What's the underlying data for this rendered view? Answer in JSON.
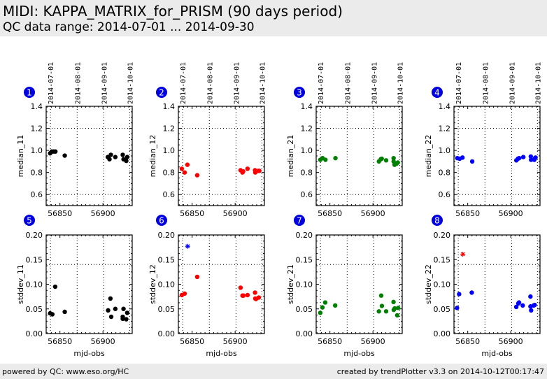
{
  "header": {
    "title": "MIDI: KAPPA_MATRIX_for_PRISM (90 days period)",
    "subtitle": "QC data range: 2014-07-01 ... 2014-09-30"
  },
  "footer": {
    "left": "powered by QC: www.eso.org/HC",
    "right": "created by trendPlotter v3.3 on 2014-10-12T00:17:47"
  },
  "colors": {
    "black": "#000000",
    "red": "#ff0000",
    "green": "#008000",
    "blue": "#0000ff",
    "badge": "#0000e0"
  },
  "chart_data": [
    {
      "type": "scatter",
      "panel": 1,
      "ylabel": "median_11",
      "xlabel": "",
      "xlim": [
        56834,
        56934
      ],
      "ylim": [
        0.5,
        1.4
      ],
      "yticks": [
        "0.6",
        "0.8",
        "1.0",
        "1.2",
        "1.4"
      ],
      "ytick_values": [
        0.6,
        0.8,
        1.0,
        1.2,
        1.4
      ],
      "xticks": [
        "56850",
        "56900"
      ],
      "xtick_values": [
        56850,
        56900
      ],
      "date_ticks": [
        "2014-07-01",
        "2014-08-01",
        "2014-09-01",
        "2014-10-01"
      ],
      "date_tick_mjd": [
        56839,
        56870,
        56901,
        56931
      ],
      "threshold_lines": [
        0.6,
        1.2
      ],
      "color": "black",
      "points": [
        [
          56838.6,
          0.974
        ],
        [
          56840.5,
          0.99
        ],
        [
          56842.6,
          0.99
        ],
        [
          56844.7,
          0.99
        ],
        [
          56855.6,
          0.953
        ],
        [
          56905.7,
          0.94
        ],
        [
          56907.6,
          0.92
        ],
        [
          56909.2,
          0.96
        ],
        [
          56914.4,
          0.94
        ],
        [
          56923.0,
          0.96
        ],
        [
          56923.9,
          0.92
        ],
        [
          56927.1,
          0.905
        ],
        [
          56928.2,
          0.94
        ]
      ],
      "outliers": []
    },
    {
      "type": "scatter",
      "panel": 2,
      "ylabel": "median_12",
      "xlabel": "",
      "xlim": [
        56834,
        56934
      ],
      "ylim": [
        0.5,
        1.4
      ],
      "yticks": [
        "0.6",
        "0.8",
        "1.0",
        "1.2",
        "1.4"
      ],
      "ytick_values": [
        0.6,
        0.8,
        1.0,
        1.2,
        1.4
      ],
      "xticks": [
        "56850",
        "56900"
      ],
      "xtick_values": [
        56850,
        56900
      ],
      "date_ticks": [
        "2014-07-01",
        "2014-08-01",
        "2014-09-01",
        "2014-10-01"
      ],
      "date_tick_mjd": [
        56839,
        56870,
        56901,
        56931
      ],
      "threshold_lines": [
        0.6,
        1.2
      ],
      "color": "red",
      "points": [
        [
          56838.0,
          0.834
        ],
        [
          56841.3,
          0.8
        ],
        [
          56844.5,
          0.87
        ],
        [
          56855.9,
          0.775
        ],
        [
          56906.3,
          0.82
        ],
        [
          56908.5,
          0.8
        ],
        [
          56909.3,
          0.81
        ],
        [
          56914.4,
          0.834
        ],
        [
          56923.1,
          0.82
        ],
        [
          56923.4,
          0.8
        ],
        [
          56926.9,
          0.815
        ],
        [
          56928.0,
          0.815
        ]
      ],
      "outliers": []
    },
    {
      "type": "scatter",
      "panel": 3,
      "ylabel": "median_21",
      "xlabel": "",
      "xlim": [
        56834,
        56934
      ],
      "ylim": [
        0.5,
        1.4
      ],
      "yticks": [
        "0.6",
        "0.8",
        "1.0",
        "1.2",
        "1.4"
      ],
      "ytick_values": [
        0.6,
        0.8,
        1.0,
        1.2,
        1.4
      ],
      "xticks": [
        "56850",
        "56900"
      ],
      "xtick_values": [
        56850,
        56900
      ],
      "date_ticks": [
        "2014-07-01",
        "2014-08-01",
        "2014-09-01",
        "2014-10-01"
      ],
      "date_tick_mjd": [
        56839,
        56870,
        56901,
        56931
      ],
      "threshold_lines": [
        0.6,
        1.2
      ],
      "color": "green",
      "points": [
        [
          56838.8,
          0.915
        ],
        [
          56841.5,
          0.93
        ],
        [
          56844.8,
          0.915
        ],
        [
          56856.4,
          0.93
        ],
        [
          56906.9,
          0.9
        ],
        [
          56909.1,
          0.92
        ],
        [
          56910.2,
          0.925
        ],
        [
          56915.3,
          0.91
        ],
        [
          56924.0,
          0.93
        ],
        [
          56924.0,
          0.9
        ],
        [
          56925.1,
          0.87
        ],
        [
          56927.5,
          0.88
        ],
        [
          56928.9,
          0.89
        ]
      ],
      "outliers": []
    },
    {
      "type": "scatter",
      "panel": 4,
      "ylabel": "median_22",
      "xlabel": "",
      "xlim": [
        56834,
        56934
      ],
      "ylim": [
        0.5,
        1.4
      ],
      "yticks": [
        "0.6",
        "0.8",
        "1.0",
        "1.2",
        "1.4"
      ],
      "ytick_values": [
        0.6,
        0.8,
        1.0,
        1.2,
        1.4
      ],
      "xticks": [
        "56850",
        "56900"
      ],
      "xtick_values": [
        56850,
        56900
      ],
      "date_ticks": [
        "2014-07-01",
        "2014-08-01",
        "2014-09-01",
        "2014-10-01"
      ],
      "date_tick_mjd": [
        56839,
        56870,
        56901,
        56931
      ],
      "threshold_lines": [
        0.6,
        1.2
      ],
      "color": "blue",
      "points": [
        [
          56837.9,
          0.93
        ],
        [
          56840.6,
          0.925
        ],
        [
          56843.9,
          0.935
        ],
        [
          56855.2,
          0.9
        ],
        [
          56906.5,
          0.91
        ],
        [
          56908.4,
          0.925
        ],
        [
          56909.8,
          0.93
        ],
        [
          56914.6,
          0.94
        ],
        [
          56923.3,
          0.945
        ],
        [
          56923.6,
          0.915
        ],
        [
          56927.4,
          0.915
        ],
        [
          56928.2,
          0.93
        ],
        [
          56928.8,
          0.935
        ]
      ],
      "outliers": []
    },
    {
      "type": "scatter",
      "panel": 5,
      "ylabel": "stddev_11",
      "xlabel": "mjd-obs",
      "xlim": [
        56834,
        56934
      ],
      "ylim": [
        0.0,
        0.2
      ],
      "yticks": [
        "0.00",
        "0.05",
        "0.10",
        "0.15",
        "0.20"
      ],
      "ytick_values": [
        0.0,
        0.05,
        0.1,
        0.15,
        0.2
      ],
      "xticks": [
        "56850",
        "56900"
      ],
      "xtick_values": [
        56850,
        56900
      ],
      "date_ticks": [],
      "date_tick_mjd": [
        56839,
        56870,
        56901,
        56931
      ],
      "threshold_lines": [
        0.14
      ],
      "color": "black",
      "points": [
        [
          56838.6,
          0.041
        ],
        [
          56841.2,
          0.039
        ],
        [
          56844.5,
          0.095
        ],
        [
          56855.6,
          0.044
        ],
        [
          56906.0,
          0.047
        ],
        [
          56908.7,
          0.071
        ],
        [
          56909.6,
          0.034
        ],
        [
          56914.4,
          0.05
        ],
        [
          56923.9,
          0.05
        ],
        [
          56923.0,
          0.034
        ],
        [
          56923.0,
          0.03
        ],
        [
          56927.1,
          0.029
        ],
        [
          56928.2,
          0.042
        ]
      ],
      "outliers": []
    },
    {
      "type": "scatter",
      "panel": 6,
      "ylabel": "stddev_12",
      "xlabel": "mjd-obs",
      "xlim": [
        56834,
        56934
      ],
      "ylim": [
        0.0,
        0.2
      ],
      "yticks": [
        "0.00",
        "0.05",
        "0.10",
        "0.15",
        "0.20"
      ],
      "ytick_values": [
        0.0,
        0.05,
        0.1,
        0.15,
        0.2
      ],
      "xticks": [
        "56850",
        "56900"
      ],
      "xtick_values": [
        56850,
        56900
      ],
      "date_ticks": [],
      "date_tick_mjd": [
        56839,
        56870,
        56901,
        56931
      ],
      "threshold_lines": [
        0.14
      ],
      "color": "red",
      "points": [
        [
          56838.0,
          0.078
        ],
        [
          56841.3,
          0.081
        ],
        [
          56855.9,
          0.115
        ],
        [
          56906.3,
          0.093
        ],
        [
          56908.5,
          0.077
        ],
        [
          56909.6,
          0.077
        ],
        [
          56914.4,
          0.078
        ],
        [
          56923.1,
          0.083
        ],
        [
          56923.4,
          0.071
        ],
        [
          56924.2,
          0.07
        ],
        [
          56927.5,
          0.073
        ]
      ],
      "outliers": [
        {
          "mjd": 56844.8,
          "value": 0.177,
          "color": "blue",
          "marker": "star"
        }
      ]
    },
    {
      "type": "scatter",
      "panel": 7,
      "ylabel": "stddev_21",
      "xlabel": "mjd-obs",
      "xlim": [
        56834,
        56934
      ],
      "ylim": [
        0.0,
        0.2
      ],
      "yticks": [
        "0.00",
        "0.05",
        "0.10",
        "0.15",
        "0.20"
      ],
      "ytick_values": [
        0.0,
        0.05,
        0.1,
        0.15,
        0.2
      ],
      "xticks": [
        "56850",
        "56900"
      ],
      "xtick_values": [
        56850,
        56900
      ],
      "date_ticks": [],
      "date_tick_mjd": [
        56839,
        56870,
        56901,
        56931
      ],
      "threshold_lines": [
        0.14
      ],
      "color": "green",
      "points": [
        [
          56838.8,
          0.042
        ],
        [
          56841.3,
          0.053
        ],
        [
          56844.5,
          0.063
        ],
        [
          56856.1,
          0.057
        ],
        [
          56906.9,
          0.045
        ],
        [
          56909.6,
          0.077
        ],
        [
          56910.4,
          0.056
        ],
        [
          56915.3,
          0.045
        ],
        [
          56923.9,
          0.064
        ],
        [
          56924.2,
          0.048
        ],
        [
          56925.3,
          0.051
        ],
        [
          56928.2,
          0.037
        ],
        [
          56929.3,
          0.052
        ]
      ],
      "outliers": []
    },
    {
      "type": "scatter",
      "panel": 8,
      "ylabel": "stddev_22",
      "xlabel": "mjd-obs",
      "xlim": [
        56834,
        56934
      ],
      "ylim": [
        0.0,
        0.2
      ],
      "yticks": [
        "0.00",
        "0.05",
        "0.10",
        "0.15",
        "0.20"
      ],
      "ytick_values": [
        0.0,
        0.05,
        0.1,
        0.15,
        0.2
      ],
      "xticks": [
        "56850",
        "56900"
      ],
      "xtick_values": [
        56850,
        56900
      ],
      "date_ticks": [],
      "date_tick_mjd": [
        56839,
        56870,
        56901,
        56931
      ],
      "threshold_lines": [
        0.14
      ],
      "color": "blue",
      "points": [
        [
          56837.6,
          0.052
        ],
        [
          56840.0,
          0.08
        ],
        [
          56854.7,
          0.083
        ],
        [
          56906.4,
          0.054
        ],
        [
          56908.8,
          0.061
        ],
        [
          56909.6,
          0.063
        ],
        [
          56913.9,
          0.057
        ],
        [
          56922.9,
          0.075
        ],
        [
          56922.9,
          0.055
        ],
        [
          56923.7,
          0.047
        ],
        [
          56926.7,
          0.057
        ],
        [
          56927.8,
          0.058
        ]
      ],
      "outliers": [
        {
          "mjd": 56844.3,
          "value": 0.161,
          "color": "red",
          "marker": "star"
        }
      ]
    }
  ]
}
